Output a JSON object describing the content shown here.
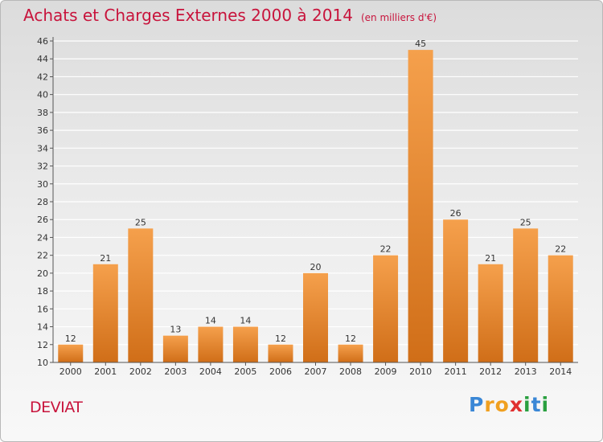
{
  "header": {
    "title": "Achats et Charges Externes 2000 à 2014",
    "subtitle": "(en milliers d'€)"
  },
  "footer": {
    "commune": "DEVIAT",
    "logo": {
      "letters": [
        "P",
        "r",
        "o",
        "x",
        "i",
        "t",
        "i"
      ],
      "colors": [
        "#3a87d6",
        "#f0a020",
        "#f0a020",
        "#e03030",
        "#2aa040",
        "#3a87d6",
        "#2aa040"
      ]
    }
  },
  "colors": {
    "title": "#c8143c",
    "bar_top": "#f5a04c",
    "bar_bottom": "#d06e18",
    "axis": "#555555",
    "grid": "#ffffff"
  },
  "chart_data": {
    "type": "bar",
    "categories": [
      "2000",
      "2001",
      "2002",
      "2003",
      "2004",
      "2005",
      "2006",
      "2007",
      "2008",
      "2009",
      "2010",
      "2011",
      "2012",
      "2013",
      "2014"
    ],
    "values": [
      12,
      21,
      25,
      13,
      14,
      14,
      12,
      20,
      12,
      22,
      45,
      26,
      21,
      25,
      22
    ],
    "ylim": [
      10,
      46
    ],
    "yticks": [
      10,
      12,
      14,
      16,
      18,
      20,
      22,
      24,
      26,
      28,
      30,
      32,
      34,
      36,
      38,
      40,
      42,
      44,
      46
    ],
    "grid": true,
    "data_labels": true
  }
}
